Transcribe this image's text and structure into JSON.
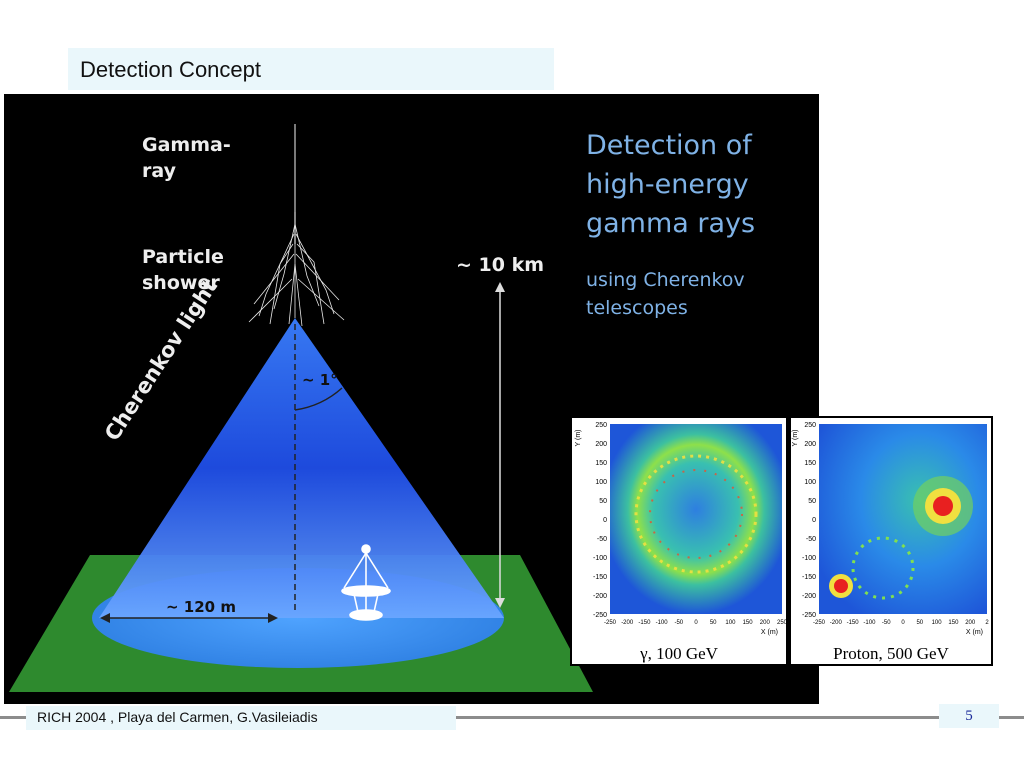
{
  "slide": {
    "title": "Detection Concept",
    "footer_text": "RICH 2004 , Playa del Carmen, G.Vasileiadis",
    "page_number": "5"
  },
  "figure": {
    "label_gamma_ray_1": "Gamma-",
    "label_gamma_ray_2": "ray",
    "label_shower_1": "Particle",
    "label_shower_2": "shower",
    "label_height": "~ 10 km",
    "label_angle": "~ 1°",
    "label_cherenkov": "Cherenkov light",
    "label_width": "~ 120 m",
    "headline_1": "Detection of",
    "headline_2": "high-energy",
    "headline_3": "gamma rays",
    "subline_1": "using Cherenkov",
    "subline_2": "telescopes",
    "colors": {
      "cone_top": "#1a3fd0",
      "cone_bottom": "#7fb2ff",
      "ground": "#2e8a2e",
      "ellipse": "#3b8ef0",
      "headline": "#7fb2e6"
    }
  },
  "plots": [
    {
      "caption": "γ, 100 GeV",
      "y_axis_label": "Y (m)",
      "x_axis_label": "X (m)",
      "y_ticks": [
        "250",
        "200",
        "150",
        "100",
        "50",
        "0",
        "-50",
        "-100",
        "-150",
        "-200",
        "-250"
      ],
      "x_ticks": [
        "-250",
        "-200",
        "-150",
        "-100",
        "-50",
        "0",
        "50",
        "100",
        "150",
        "200",
        "250"
      ]
    },
    {
      "caption": "Proton, 500 GeV",
      "y_axis_label": "Y (m)",
      "x_axis_label": "X (m)",
      "y_ticks": [
        "250",
        "200",
        "150",
        "100",
        "50",
        "0",
        "-50",
        "-100",
        "-150",
        "-200",
        "-250"
      ],
      "x_ticks": [
        "-250",
        "-200",
        "-150",
        "-100",
        "-50",
        "0",
        "50",
        "100",
        "150",
        "200",
        "2"
      ]
    }
  ]
}
